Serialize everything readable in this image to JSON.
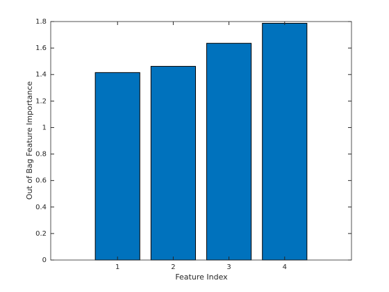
{
  "chart_data": {
    "type": "bar",
    "xlabel": "Feature Index",
    "ylabel": "Out of Bag Feature Importance",
    "x": [
      1,
      2,
      3,
      4
    ],
    "values": [
      1.415,
      1.462,
      1.636,
      1.787
    ],
    "color": "#0072bd",
    "xlim": [
      -0.2,
      5.2
    ],
    "xticks": [
      1,
      2,
      3,
      4
    ],
    "ylim": [
      0,
      1.8
    ],
    "yticks": [
      0,
      0.2,
      0.4,
      0.6,
      0.8,
      1,
      1.2,
      1.4,
      1.6,
      1.8
    ]
  }
}
